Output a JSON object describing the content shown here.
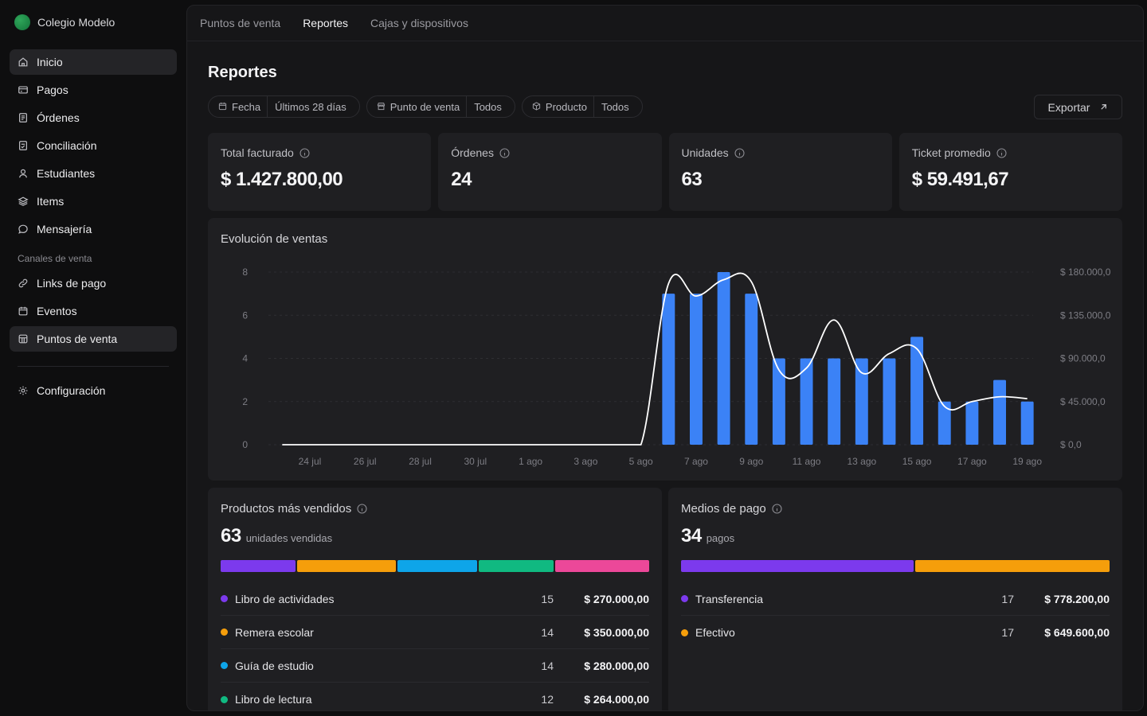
{
  "brand": {
    "name": "Colegio Modelo"
  },
  "sidebar": {
    "items": [
      {
        "label": "Inicio",
        "icon": "home-icon",
        "active": true
      },
      {
        "label": "Pagos",
        "icon": "credit-card-icon"
      },
      {
        "label": "Órdenes",
        "icon": "receipt-icon"
      },
      {
        "label": "Conciliación",
        "icon": "reconcile-icon"
      },
      {
        "label": "Estudiantes",
        "icon": "user-icon"
      },
      {
        "label": "Items",
        "icon": "layers-icon"
      },
      {
        "label": "Mensajería",
        "icon": "message-icon"
      }
    ],
    "section_label": "Canales de venta",
    "channels": [
      {
        "label": "Links de pago",
        "icon": "link-icon"
      },
      {
        "label": "Eventos",
        "icon": "calendar-icon"
      },
      {
        "label": "Puntos de venta",
        "icon": "store-icon",
        "active": true
      }
    ],
    "settings": {
      "label": "Configuración",
      "icon": "gear-icon"
    }
  },
  "tabs": [
    {
      "label": "Puntos de venta"
    },
    {
      "label": "Reportes",
      "active": true
    },
    {
      "label": "Cajas y dispositivos"
    }
  ],
  "page": {
    "title": "Reportes",
    "filters": [
      {
        "label": "Fecha",
        "value": "Últimos 28 días",
        "icon": "calendar-icon"
      },
      {
        "label": "Punto de venta",
        "value": "Todos",
        "icon": "store-icon"
      },
      {
        "label": "Producto",
        "value": "Todos",
        "icon": "box-icon"
      }
    ],
    "export_label": "Exportar"
  },
  "kpis": [
    {
      "label": "Total facturado",
      "value": "$ 1.427.800,00"
    },
    {
      "label": "Órdenes",
      "value": "24"
    },
    {
      "label": "Unidades",
      "value": "63"
    },
    {
      "label": "Ticket promedio",
      "value": "$ 59.491,67"
    }
  ],
  "colors": {
    "bar": "#3b82f6",
    "line": "#ffffff",
    "purple": "#7c3aed",
    "orange": "#f59e0b",
    "sky": "#0ea5e9",
    "green": "#10b981",
    "pink": "#ec4899"
  },
  "chart_data": {
    "type": "bar",
    "title": "Evolución de ventas",
    "x_ticks": [
      "24 jul",
      "26 jul",
      "28 jul",
      "30 jul",
      "1 ago",
      "3 ago",
      "5 ago",
      "7 ago",
      "9 ago",
      "11 ago",
      "13 ago",
      "15 ago",
      "17 ago",
      "19 ago"
    ],
    "y_left_ticks": [
      "0",
      "2",
      "4",
      "6",
      "8"
    ],
    "y_left_range": [
      0,
      8
    ],
    "y_right_ticks": [
      "$ 0,0",
      "$ 45.000,0",
      "$ 90.000,0",
      "$ 135.000,0",
      "$ 180.000,0"
    ],
    "y_right_range": [
      0,
      180000
    ],
    "grid": true,
    "bar_series": {
      "x": [
        "6 ago",
        "7 ago",
        "8 ago",
        "9 ago",
        "10 ago",
        "11 ago",
        "12 ago",
        "13 ago",
        "14 ago",
        "15 ago",
        "16 ago",
        "17 ago",
        "18 ago",
        "19 ago"
      ],
      "values": [
        7,
        7,
        8,
        7,
        4,
        4,
        4,
        4,
        4,
        5,
        2,
        2,
        3,
        2
      ]
    },
    "line_series": {
      "x": [
        "23 jul",
        "24 jul",
        "25 jul",
        "26 jul",
        "27 jul",
        "28 jul",
        "29 jul",
        "30 jul",
        "31 jul",
        "1 ago",
        "2 ago",
        "3 ago",
        "4 ago",
        "5 ago",
        "6 ago",
        "7 ago",
        "8 ago",
        "9 ago",
        "10 ago",
        "11 ago",
        "12 ago",
        "13 ago",
        "14 ago",
        "15 ago",
        "16 ago",
        "17 ago",
        "18 ago",
        "19 ago"
      ],
      "values": [
        0,
        0,
        0,
        0,
        0,
        0,
        0,
        0,
        0,
        0,
        0,
        0,
        0,
        0,
        168000,
        155000,
        172000,
        170000,
        78000,
        80000,
        130000,
        75000,
        95000,
        100000,
        40000,
        45000,
        50000,
        48000
      ]
    }
  },
  "products": {
    "title": "Productos más vendidos",
    "total": "63",
    "unit": "unidades vendidas",
    "items": [
      {
        "name": "Libro de actividades",
        "count": "15",
        "amount": "$ 270.000,00",
        "color": "#7c3aed",
        "share": 15
      },
      {
        "name": "Remera escolar",
        "count": "14",
        "amount": "$ 350.000,00",
        "color": "#f59e0b",
        "share": 20
      },
      {
        "name": "Guía de estudio",
        "count": "14",
        "amount": "$ 280.000,00",
        "color": "#0ea5e9",
        "share": 16
      },
      {
        "name": "Libro de lectura",
        "count": "12",
        "amount": "$ 264.000,00",
        "color": "#10b981",
        "share": 15
      },
      {
        "name": "",
        "count": "",
        "amount": "",
        "color": "#ec4899",
        "share": 19
      }
    ]
  },
  "payments": {
    "title": "Medios de pago",
    "total": "34",
    "unit": "pagos",
    "items": [
      {
        "name": "Transferencia",
        "count": "17",
        "amount": "$ 778.200,00",
        "color": "#7c3aed",
        "share": 54.5
      },
      {
        "name": "Efectivo",
        "count": "17",
        "amount": "$ 649.600,00",
        "color": "#f59e0b",
        "share": 45.5
      }
    ]
  }
}
